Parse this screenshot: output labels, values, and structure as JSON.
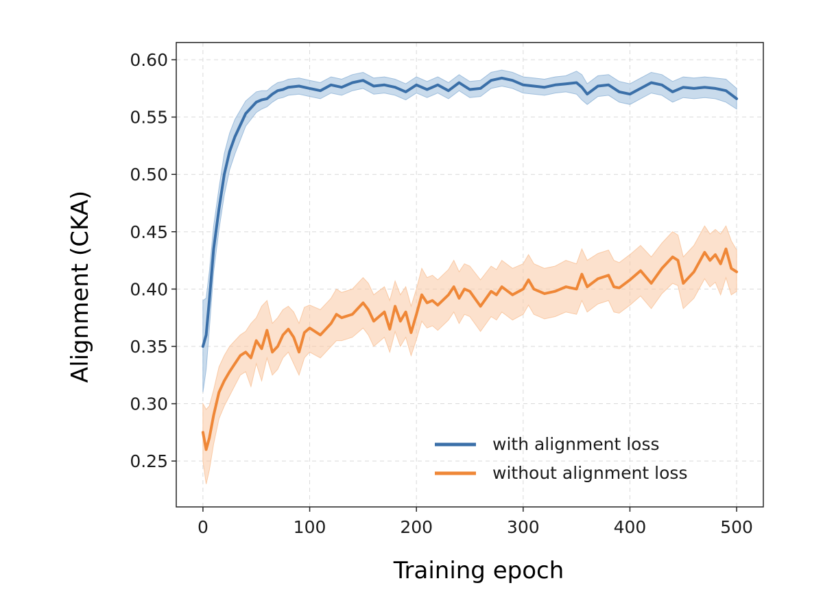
{
  "chart_data": {
    "type": "line",
    "title": "",
    "xlabel": "Training epoch",
    "ylabel": "Alignment (CKA)",
    "xlim": [
      -25,
      525
    ],
    "ylim": [
      0.21,
      0.615
    ],
    "xticks": [
      0,
      100,
      200,
      300,
      400,
      500
    ],
    "yticks": [
      0.25,
      0.3,
      0.35,
      0.4,
      0.45,
      0.5,
      0.55,
      0.6
    ],
    "xtick_labels": [
      "0",
      "100",
      "200",
      "300",
      "400",
      "500"
    ],
    "ytick_labels": [
      "0.25",
      "0.30",
      "0.35",
      "0.40",
      "0.45",
      "0.50",
      "0.55",
      "0.60"
    ],
    "grid": true,
    "legend_position": "lower-right",
    "series": [
      {
        "name": "with alignment loss",
        "color": "#3a6fa8",
        "band_color": "#9dbddc",
        "x": [
          0,
          3,
          6,
          10,
          15,
          20,
          25,
          30,
          40,
          50,
          55,
          60,
          65,
          70,
          75,
          80,
          90,
          100,
          110,
          120,
          130,
          140,
          150,
          160,
          170,
          180,
          190,
          200,
          210,
          220,
          230,
          240,
          250,
          260,
          270,
          280,
          290,
          300,
          310,
          320,
          330,
          340,
          350,
          355,
          360,
          370,
          380,
          390,
          400,
          410,
          420,
          430,
          440,
          450,
          460,
          470,
          480,
          490,
          500
        ],
        "y": [
          0.35,
          0.36,
          0.39,
          0.435,
          0.47,
          0.5,
          0.52,
          0.533,
          0.553,
          0.563,
          0.565,
          0.566,
          0.57,
          0.573,
          0.574,
          0.576,
          0.577,
          0.575,
          0.573,
          0.578,
          0.576,
          0.58,
          0.582,
          0.577,
          0.578,
          0.576,
          0.572,
          0.578,
          0.574,
          0.578,
          0.573,
          0.58,
          0.574,
          0.575,
          0.582,
          0.584,
          0.582,
          0.578,
          0.577,
          0.576,
          0.578,
          0.579,
          0.58,
          0.576,
          0.57,
          0.577,
          0.578,
          0.572,
          0.57,
          0.575,
          0.58,
          0.578,
          0.572,
          0.576,
          0.575,
          0.576,
          0.575,
          0.573,
          0.566
        ],
        "band_lower": [
          0.31,
          0.33,
          0.365,
          0.415,
          0.452,
          0.482,
          0.504,
          0.518,
          0.542,
          0.554,
          0.557,
          0.559,
          0.563,
          0.566,
          0.567,
          0.569,
          0.57,
          0.568,
          0.566,
          0.571,
          0.569,
          0.573,
          0.575,
          0.57,
          0.571,
          0.569,
          0.565,
          0.571,
          0.567,
          0.571,
          0.566,
          0.573,
          0.567,
          0.568,
          0.575,
          0.577,
          0.575,
          0.571,
          0.57,
          0.569,
          0.571,
          0.572,
          0.57,
          0.565,
          0.561,
          0.568,
          0.569,
          0.563,
          0.561,
          0.566,
          0.571,
          0.569,
          0.563,
          0.567,
          0.566,
          0.567,
          0.566,
          0.563,
          0.557
        ],
        "band_upper": [
          0.39,
          0.392,
          0.415,
          0.455,
          0.488,
          0.518,
          0.536,
          0.548,
          0.564,
          0.572,
          0.573,
          0.573,
          0.577,
          0.58,
          0.581,
          0.583,
          0.584,
          0.582,
          0.58,
          0.585,
          0.583,
          0.587,
          0.589,
          0.584,
          0.585,
          0.583,
          0.579,
          0.585,
          0.581,
          0.585,
          0.58,
          0.587,
          0.581,
          0.582,
          0.589,
          0.591,
          0.589,
          0.585,
          0.584,
          0.583,
          0.585,
          0.586,
          0.59,
          0.587,
          0.579,
          0.586,
          0.587,
          0.581,
          0.579,
          0.584,
          0.589,
          0.587,
          0.581,
          0.585,
          0.584,
          0.585,
          0.584,
          0.583,
          0.575
        ]
      },
      {
        "name": "without alignment loss",
        "color": "#ef8737",
        "band_color": "#f9c9a4",
        "x": [
          0,
          3,
          6,
          10,
          15,
          20,
          25,
          30,
          35,
          40,
          45,
          50,
          55,
          60,
          65,
          70,
          75,
          80,
          85,
          90,
          95,
          100,
          110,
          120,
          125,
          130,
          140,
          150,
          155,
          160,
          170,
          175,
          180,
          185,
          190,
          195,
          200,
          205,
          210,
          215,
          220,
          230,
          235,
          240,
          245,
          250,
          260,
          270,
          275,
          280,
          290,
          300,
          305,
          310,
          320,
          330,
          340,
          350,
          355,
          360,
          370,
          380,
          385,
          390,
          400,
          410,
          420,
          430,
          440,
          445,
          450,
          460,
          470,
          475,
          480,
          485,
          490,
          495,
          500
        ],
        "y": [
          0.275,
          0.26,
          0.27,
          0.29,
          0.31,
          0.32,
          0.328,
          0.335,
          0.342,
          0.345,
          0.34,
          0.355,
          0.348,
          0.364,
          0.345,
          0.35,
          0.36,
          0.365,
          0.358,
          0.345,
          0.362,
          0.366,
          0.36,
          0.37,
          0.378,
          0.375,
          0.378,
          0.388,
          0.382,
          0.372,
          0.38,
          0.365,
          0.385,
          0.372,
          0.38,
          0.362,
          0.378,
          0.395,
          0.388,
          0.39,
          0.386,
          0.395,
          0.402,
          0.392,
          0.4,
          0.398,
          0.385,
          0.398,
          0.395,
          0.402,
          0.395,
          0.4,
          0.408,
          0.4,
          0.396,
          0.398,
          0.402,
          0.4,
          0.413,
          0.402,
          0.409,
          0.412,
          0.402,
          0.401,
          0.408,
          0.416,
          0.405,
          0.418,
          0.428,
          0.425,
          0.405,
          0.415,
          0.432,
          0.425,
          0.43,
          0.422,
          0.435,
          0.418,
          0.415
        ],
        "band_lower": [
          0.25,
          0.23,
          0.242,
          0.265,
          0.287,
          0.298,
          0.307,
          0.316,
          0.325,
          0.328,
          0.315,
          0.335,
          0.32,
          0.34,
          0.325,
          0.33,
          0.34,
          0.345,
          0.335,
          0.325,
          0.34,
          0.345,
          0.34,
          0.35,
          0.355,
          0.355,
          0.358,
          0.366,
          0.36,
          0.35,
          0.358,
          0.345,
          0.363,
          0.35,
          0.358,
          0.342,
          0.356,
          0.372,
          0.366,
          0.368,
          0.364,
          0.373,
          0.38,
          0.37,
          0.378,
          0.376,
          0.363,
          0.376,
          0.373,
          0.38,
          0.373,
          0.378,
          0.386,
          0.378,
          0.374,
          0.376,
          0.38,
          0.378,
          0.39,
          0.38,
          0.387,
          0.39,
          0.38,
          0.379,
          0.386,
          0.394,
          0.383,
          0.396,
          0.405,
          0.403,
          0.383,
          0.392,
          0.409,
          0.402,
          0.406,
          0.395,
          0.41,
          0.395,
          0.398
        ],
        "band_upper": [
          0.3,
          0.295,
          0.298,
          0.312,
          0.332,
          0.342,
          0.35,
          0.355,
          0.36,
          0.363,
          0.37,
          0.375,
          0.385,
          0.39,
          0.37,
          0.375,
          0.382,
          0.385,
          0.38,
          0.37,
          0.384,
          0.386,
          0.382,
          0.392,
          0.4,
          0.397,
          0.4,
          0.41,
          0.405,
          0.395,
          0.402,
          0.39,
          0.407,
          0.395,
          0.402,
          0.385,
          0.4,
          0.418,
          0.41,
          0.412,
          0.408,
          0.417,
          0.425,
          0.415,
          0.422,
          0.42,
          0.408,
          0.42,
          0.417,
          0.425,
          0.418,
          0.422,
          0.43,
          0.422,
          0.418,
          0.42,
          0.425,
          0.422,
          0.435,
          0.425,
          0.431,
          0.434,
          0.425,
          0.423,
          0.43,
          0.438,
          0.428,
          0.44,
          0.45,
          0.447,
          0.428,
          0.438,
          0.455,
          0.448,
          0.452,
          0.448,
          0.455,
          0.442,
          0.434
        ]
      }
    ]
  }
}
